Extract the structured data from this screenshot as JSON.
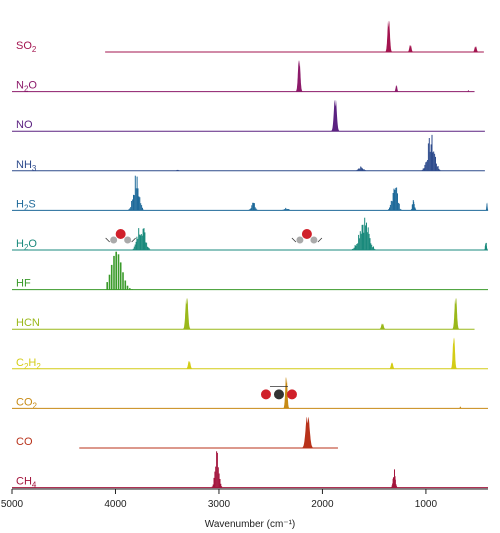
{
  "chart_data": {
    "type": "area",
    "title": "",
    "xlabel": "Wavenumber (cm⁻¹)",
    "xlim": [
      5000,
      400
    ],
    "xticks": [
      5000,
      4000,
      3000,
      2000,
      1000
    ],
    "xtick_labels": [
      "5000",
      "4000",
      "3000",
      "2000",
      "1000"
    ],
    "series": [
      {
        "name": "SO2",
        "label_main": "SO",
        "label_sub": "2",
        "label_rest": "",
        "color": "#a3144f",
        "baseline_range": [
          4100,
          440
        ],
        "bands": [
          {
            "center": 1360,
            "width": 45,
            "amp": 1.0,
            "kind": "smooth"
          },
          {
            "center": 1150,
            "width": 40,
            "amp": 0.22,
            "kind": "smooth"
          },
          {
            "center": 520,
            "width": 40,
            "amp": 0.18,
            "kind": "smooth"
          }
        ]
      },
      {
        "name": "N2O",
        "label_main": "N",
        "label_sub": "2",
        "label_rest": "O",
        "color": "#8c1a6a",
        "baseline_range": [
          5000,
          530
        ],
        "bands": [
          {
            "center": 2225,
            "width": 45,
            "amp": 1.0,
            "kind": "smooth"
          },
          {
            "center": 1285,
            "width": 30,
            "amp": 0.2,
            "kind": "smooth"
          },
          {
            "center": 590,
            "width": 15,
            "amp": 0.05,
            "kind": "smooth"
          }
        ]
      },
      {
        "name": "NO",
        "label_main": "NO",
        "label_sub": "",
        "label_rest": "",
        "color": "#5b2281",
        "baseline_range": [
          5000,
          430
        ],
        "bands": [
          {
            "center": 1876,
            "width": 55,
            "amp": 1.0,
            "kind": "smooth"
          }
        ]
      },
      {
        "name": "NH3",
        "label_main": "NH",
        "label_sub": "3",
        "label_rest": "",
        "color": "#2e4b8c",
        "baseline_range": [
          5000,
          430
        ],
        "bands": [
          {
            "center": 3400,
            "width": 40,
            "amp": 0.03,
            "kind": "smooth"
          },
          {
            "center": 1630,
            "width": 120,
            "amp": 0.12,
            "kind": "lines"
          },
          {
            "center": 950,
            "width": 170,
            "amp": 1.0,
            "kind": "lines"
          }
        ]
      },
      {
        "name": "H2S",
        "label_main": "H",
        "label_sub": "2",
        "label_rest": "S",
        "color": "#1f6a9a",
        "baseline_range": [
          5000,
          400
        ],
        "bands": [
          {
            "center": 3800,
            "width": 140,
            "amp": 1.0,
            "kind": "lines"
          },
          {
            "center": 2670,
            "width": 90,
            "amp": 0.25,
            "kind": "lines"
          },
          {
            "center": 2350,
            "width": 100,
            "amp": 0.08,
            "kind": "lines"
          },
          {
            "center": 1300,
            "width": 120,
            "amp": 0.95,
            "kind": "lines"
          },
          {
            "center": 1120,
            "width": 50,
            "amp": 0.3,
            "kind": "lines"
          },
          {
            "center": 410,
            "width": 20,
            "amp": 0.25,
            "kind": "smooth"
          }
        ]
      },
      {
        "name": "H2O",
        "label_main": "H",
        "label_sub": "2",
        "label_rest": "O",
        "color": "#1a8a7c",
        "baseline_range": [
          5000,
          400
        ],
        "bands": [
          {
            "center": 3750,
            "width": 170,
            "amp": 0.85,
            "kind": "lines"
          },
          {
            "center": 1600,
            "width": 220,
            "amp": 1.0,
            "kind": "lines"
          },
          {
            "center": 420,
            "width": 25,
            "amp": 0.25,
            "kind": "lines"
          }
        ]
      },
      {
        "name": "HF",
        "label_main": "HF",
        "label_sub": "",
        "label_rest": "",
        "color": "#3a9a2a",
        "baseline_range": [
          5000,
          400
        ],
        "bands": [
          {
            "center": 3960,
            "width": 240,
            "amp": 1.0,
            "kind": "comb"
          }
        ]
      },
      {
        "name": "HCN",
        "label_main": "HCN",
        "label_sub": "",
        "label_rest": "",
        "color": "#9ab81a",
        "baseline_range": [
          5000,
          530
        ],
        "bands": [
          {
            "center": 3311,
            "width": 50,
            "amp": 1.0,
            "kind": "smooth"
          },
          {
            "center": 1420,
            "width": 45,
            "amp": 0.18,
            "kind": "smooth"
          },
          {
            "center": 712,
            "width": 45,
            "amp": 1.0,
            "kind": "smooth"
          }
        ]
      },
      {
        "name": "C2H2",
        "label_main": "C",
        "label_sub": "2",
        "label_rest": "H",
        "label_sub2": "2",
        "color": "#d4cc16",
        "baseline_range": [
          5000,
          400
        ],
        "bands": [
          {
            "center": 3287,
            "width": 45,
            "amp": 0.25,
            "kind": "smooth"
          },
          {
            "center": 1328,
            "width": 40,
            "amp": 0.2,
            "kind": "smooth"
          },
          {
            "center": 730,
            "width": 40,
            "amp": 1.0,
            "kind": "smooth"
          }
        ]
      },
      {
        "name": "CO2",
        "label_main": "CO",
        "label_sub": "2",
        "label_rest": "",
        "color": "#c78a14",
        "baseline_range": [
          5000,
          400
        ],
        "bands": [
          {
            "center": 2349,
            "width": 40,
            "amp": 1.0,
            "kind": "smooth"
          },
          {
            "center": 667,
            "width": 20,
            "amp": 0.06,
            "kind": "smooth"
          }
        ]
      },
      {
        "name": "CO",
        "label_main": "CO",
        "label_sub": "",
        "label_rest": "",
        "color": "#b8321a",
        "baseline_range": [
          4350,
          1850
        ],
        "bands": [
          {
            "center": 2143,
            "width": 75,
            "amp": 1.0,
            "kind": "smooth"
          }
        ]
      },
      {
        "name": "CH4",
        "label_main": "CH",
        "label_sub": "4",
        "label_rest": "",
        "color": "#a3143c",
        "baseline_range": [
          5000,
          400
        ],
        "bands": [
          {
            "center": 3019,
            "width": 90,
            "amp": 1.0,
            "kind": "lines"
          },
          {
            "center": 1306,
            "width": 50,
            "amp": 0.5,
            "kind": "lines"
          }
        ]
      }
    ],
    "insets": [
      {
        "name": "bending-mode-h2o",
        "near": 3950,
        "row": "H2O"
      },
      {
        "name": "stretch-mode-h2o",
        "near": 2150,
        "row": "H2O"
      },
      {
        "name": "stretch-mode-co2",
        "near": 2420,
        "row": "CO2"
      }
    ]
  }
}
